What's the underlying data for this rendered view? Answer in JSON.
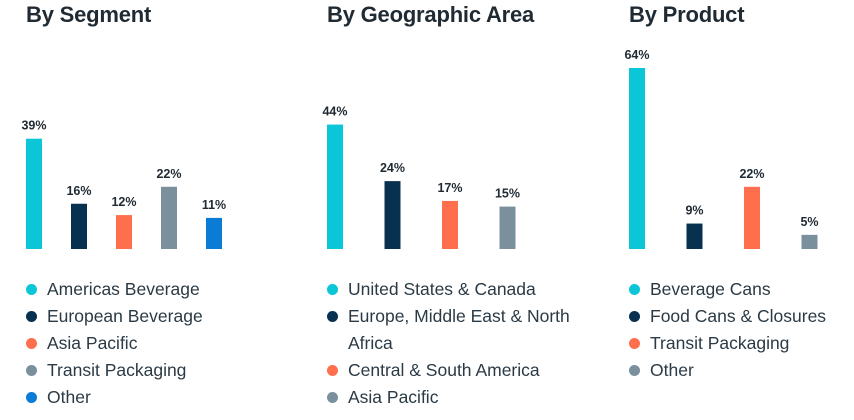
{
  "chart_data": [
    {
      "type": "bar",
      "title": "By Segment",
      "categories": [
        "Americas Beverage",
        "European Beverage",
        "Asia Pacific",
        "Transit Packaging",
        "Other"
      ],
      "values": [
        39,
        16,
        12,
        22,
        11
      ],
      "labels": [
        "39%",
        "16%",
        "12%",
        "22%",
        "11%"
      ],
      "colors": [
        "#0ac6d6",
        "#08314f",
        "#ff6f4e",
        "#7a909c",
        "#0a7cd6"
      ],
      "ylim": [
        0,
        64
      ],
      "legend_position": "bottom",
      "grid": false
    },
    {
      "type": "bar",
      "title": "By Geographic Area",
      "categories": [
        "United States & Canada",
        "Europe, Middle East & North Africa",
        "Central & South America",
        "Asia Pacific"
      ],
      "values": [
        44,
        24,
        17,
        15
      ],
      "labels": [
        "44%",
        "24%",
        "17%",
        "15%"
      ],
      "colors": [
        "#0ac6d6",
        "#08314f",
        "#ff6f4e",
        "#7a909c"
      ],
      "ylim": [
        0,
        64
      ],
      "legend_position": "bottom",
      "grid": false
    },
    {
      "type": "bar",
      "title": "By Product",
      "categories": [
        "Beverage Cans",
        "Food Cans & Closures",
        "Transit Packaging",
        "Other"
      ],
      "values": [
        64,
        9,
        22,
        5
      ],
      "labels": [
        "64%",
        "9%",
        "22%",
        "5%"
      ],
      "colors": [
        "#0ac6d6",
        "#08314f",
        "#ff6f4e",
        "#7a909c"
      ],
      "ylim": [
        0,
        64
      ],
      "legend_position": "bottom",
      "grid": false
    }
  ]
}
